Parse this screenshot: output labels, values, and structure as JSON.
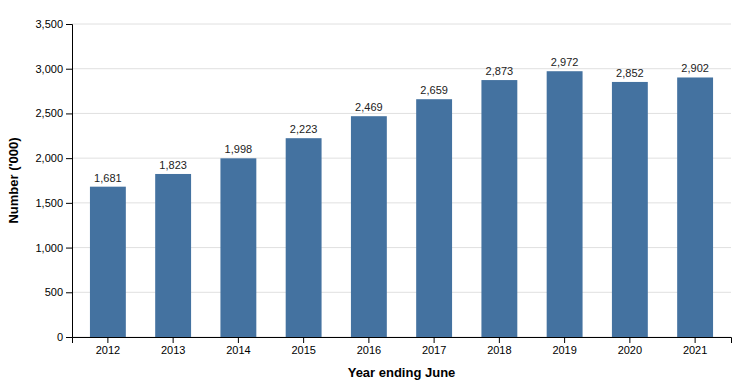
{
  "chart_data": {
    "type": "bar",
    "categories": [
      "2012",
      "2013",
      "2014",
      "2015",
      "2016",
      "2017",
      "2018",
      "2019",
      "2020",
      "2021"
    ],
    "values": [
      1681,
      1823,
      1998,
      2223,
      2469,
      2659,
      2873,
      2972,
      2852,
      2902
    ],
    "value_labels": [
      "1,681",
      "1,823",
      "1,998",
      "2,223",
      "2,469",
      "2,659",
      "2,873",
      "2,972",
      "2,852",
      "2,902"
    ],
    "data_labels": true,
    "color": "#4472a0",
    "xlabel": "Year ending June",
    "ylabel": "Number ('000)",
    "ylim": [
      0,
      3500
    ],
    "yticks": [
      0,
      500,
      {
        "value": 1000,
        "label": "1,000"
      },
      {
        "value": 1500,
        "label": "1,500"
      },
      {
        "value": 2000,
        "label": "2,000"
      },
      {
        "value": 2500,
        "label": "2,500"
      },
      {
        "value": 3000,
        "label": "3,000"
      },
      {
        "value": 3500,
        "label": "3,500"
      }
    ],
    "grid": true
  }
}
